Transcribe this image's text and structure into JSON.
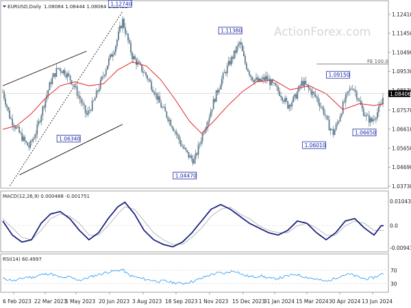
{
  "header": {
    "symbol_label": "EURUSD,Daily",
    "ohlc": "1.08084 1.08444 1.08084 1.08406"
  },
  "watermark": "ActionForex.com",
  "colors": {
    "candle": "#5e7a8c",
    "ma": "#e02424",
    "macd_line": "#1a237e",
    "signal_line": "#b0b0b0",
    "rsi_line": "#2196f3",
    "trendline": "#000000",
    "callout_border": "#1a2aa0",
    "current_price_box": "#000000"
  },
  "chart_data": [
    {
      "type": "candlestick",
      "title": "EURUSD,Daily",
      "x_ticks": [
        "6 Feb 2023",
        "22 Mar 2023",
        "5 May 2023",
        "20 Jun 2023",
        "3 Aug 2023",
        "18 Sep 2023",
        "1 Nov 2023",
        "15 Dec 2023",
        "31 Jan 2024",
        "15 Mar 2024",
        "30 Apr 2024",
        "13 Jun 2024"
      ],
      "y_ticks": [
        "1.12410",
        "1.11450",
        "1.10490",
        "1.09530",
        "1.08570",
        "1.07570",
        "1.06610",
        "1.05650",
        "1.04690",
        "1.03730"
      ],
      "ylim": [
        1.0373,
        1.1265
      ],
      "current_price": "1.08406",
      "callouts": [
        {
          "label": "1.12740",
          "value": 1.1274,
          "position": "above"
        },
        {
          "label": "1.11380",
          "value": 1.1138,
          "position": "above"
        },
        {
          "label": "1.09150",
          "value": 1.0915,
          "position": "above"
        },
        {
          "label": "1.06340",
          "value": 1.0634,
          "position": "below"
        },
        {
          "label": "1.04470",
          "value": 1.0447,
          "position": "below"
        },
        {
          "label": "1.06010",
          "value": 1.0601,
          "position": "below"
        },
        {
          "label": "1.06650",
          "value": 1.0665,
          "position": "below"
        }
      ],
      "fibo_label": "FE 100.0",
      "fibo_value": 1.099,
      "close_path": [
        [
          0,
          1.085
        ],
        [
          6,
          1.072
        ],
        [
          12,
          1.066
        ],
        [
          18,
          1.06
        ],
        [
          22,
          1.057
        ],
        [
          28,
          1.065
        ],
        [
          34,
          1.078
        ],
        [
          40,
          1.09
        ],
        [
          46,
          1.097
        ],
        [
          52,
          1.095
        ],
        [
          58,
          1.09
        ],
        [
          64,
          1.082
        ],
        [
          70,
          1.073
        ],
        [
          76,
          1.08
        ],
        [
          82,
          1.09
        ],
        [
          88,
          1.1
        ],
        [
          94,
          1.108
        ],
        [
          98,
          1.117
        ],
        [
          100,
          1.121
        ],
        [
          104,
          1.112
        ],
        [
          108,
          1.103
        ],
        [
          114,
          1.098
        ],
        [
          120,
          1.093
        ],
        [
          126,
          1.086
        ],
        [
          132,
          1.078
        ],
        [
          138,
          1.072
        ],
        [
          144,
          1.065
        ],
        [
          150,
          1.057
        ],
        [
          156,
          1.052
        ],
        [
          160,
          1.05
        ],
        [
          164,
          1.058
        ],
        [
          168,
          1.066
        ],
        [
          172,
          1.072
        ],
        [
          176,
          1.08
        ],
        [
          182,
          1.09
        ],
        [
          188,
          1.098
        ],
        [
          194,
          1.105
        ],
        [
          198,
          1.11
        ],
        [
          202,
          1.1
        ],
        [
          208,
          1.092
        ],
        [
          214,
          1.09
        ],
        [
          220,
          1.092
        ],
        [
          226,
          1.088
        ],
        [
          232,
          1.084
        ],
        [
          238,
          1.078
        ],
        [
          244,
          1.082
        ],
        [
          250,
          1.09
        ],
        [
          256,
          1.086
        ],
        [
          262,
          1.082
        ],
        [
          268,
          1.075
        ],
        [
          272,
          1.068
        ],
        [
          276,
          1.064
        ],
        [
          280,
          1.07
        ],
        [
          284,
          1.078
        ],
        [
          288,
          1.084
        ],
        [
          292,
          1.088
        ],
        [
          296,
          1.083
        ],
        [
          300,
          1.076
        ],
        [
          304,
          1.072
        ],
        [
          308,
          1.07
        ],
        [
          312,
          1.074
        ],
        [
          316,
          1.078
        ],
        [
          318,
          1.084
        ]
      ],
      "ma_path": [
        [
          0,
          1.066
        ],
        [
          12,
          1.068
        ],
        [
          24,
          1.074
        ],
        [
          36,
          1.082
        ],
        [
          48,
          1.088
        ],
        [
          60,
          1.09
        ],
        [
          72,
          1.088
        ],
        [
          84,
          1.089
        ],
        [
          96,
          1.096
        ],
        [
          108,
          1.1
        ],
        [
          120,
          1.098
        ],
        [
          132,
          1.091
        ],
        [
          144,
          1.081
        ],
        [
          156,
          1.07
        ],
        [
          166,
          1.064
        ],
        [
          176,
          1.07
        ],
        [
          188,
          1.078
        ],
        [
          200,
          1.085
        ],
        [
          212,
          1.09
        ],
        [
          226,
          1.091
        ],
        [
          240,
          1.086
        ],
        [
          256,
          1.088
        ],
        [
          270,
          1.084
        ],
        [
          284,
          1.076
        ],
        [
          298,
          1.079
        ],
        [
          310,
          1.078
        ],
        [
          318,
          1.079
        ]
      ]
    },
    {
      "type": "line",
      "title": "MACD(12,26,9) 0.000488 -0.001751",
      "y_ticks": [
        "0.010434",
        "0.0",
        "-0.009436"
      ],
      "ylim": [
        -0.01,
        0.011
      ],
      "macd": [
        [
          0,
          0.002
        ],
        [
          8,
          -0.004
        ],
        [
          16,
          -0.007
        ],
        [
          24,
          -0.006
        ],
        [
          32,
          0.001
        ],
        [
          40,
          0.005
        ],
        [
          48,
          0.006
        ],
        [
          56,
          0.003
        ],
        [
          64,
          -0.002
        ],
        [
          72,
          -0.006
        ],
        [
          80,
          -0.003
        ],
        [
          88,
          0.003
        ],
        [
          96,
          0.008
        ],
        [
          102,
          0.01
        ],
        [
          110,
          0.005
        ],
        [
          118,
          -0.002
        ],
        [
          126,
          -0.006
        ],
        [
          134,
          -0.008
        ],
        [
          142,
          -0.009
        ],
        [
          150,
          -0.007
        ],
        [
          158,
          -0.003
        ],
        [
          166,
          0.002
        ],
        [
          174,
          0.007
        ],
        [
          182,
          0.009
        ],
        [
          190,
          0.007
        ],
        [
          198,
          0.004
        ],
        [
          206,
          0.001
        ],
        [
          214,
          -0.001
        ],
        [
          222,
          -0.003
        ],
        [
          230,
          -0.004
        ],
        [
          238,
          -0.002
        ],
        [
          246,
          0.002
        ],
        [
          254,
          0.001
        ],
        [
          262,
          -0.003
        ],
        [
          270,
          -0.006
        ],
        [
          278,
          -0.003
        ],
        [
          286,
          0.002
        ],
        [
          294,
          0.003
        ],
        [
          302,
          -0.001
        ],
        [
          310,
          -0.004
        ],
        [
          316,
          0.0
        ]
      ],
      "signal": [
        [
          0,
          0.003
        ],
        [
          8,
          -0.001
        ],
        [
          16,
          -0.005
        ],
        [
          24,
          -0.006
        ],
        [
          32,
          -0.002
        ],
        [
          40,
          0.003
        ],
        [
          48,
          0.005
        ],
        [
          56,
          0.004
        ],
        [
          64,
          0.001
        ],
        [
          72,
          -0.004
        ],
        [
          80,
          -0.004
        ],
        [
          88,
          0.0
        ],
        [
          96,
          0.005
        ],
        [
          102,
          0.008
        ],
        [
          110,
          0.007
        ],
        [
          118,
          0.002
        ],
        [
          126,
          -0.003
        ],
        [
          134,
          -0.006
        ],
        [
          142,
          -0.008
        ],
        [
          150,
          -0.008
        ],
        [
          158,
          -0.005
        ],
        [
          166,
          -0.001
        ],
        [
          174,
          0.004
        ],
        [
          182,
          0.007
        ],
        [
          190,
          0.008
        ],
        [
          198,
          0.005
        ],
        [
          206,
          0.003
        ],
        [
          214,
          0.0
        ],
        [
          222,
          -0.002
        ],
        [
          230,
          -0.003
        ],
        [
          238,
          -0.003
        ],
        [
          246,
          0.0
        ],
        [
          254,
          0.001
        ],
        [
          262,
          -0.001
        ],
        [
          270,
          -0.004
        ],
        [
          278,
          -0.004
        ],
        [
          286,
          0.0
        ],
        [
          294,
          0.002
        ],
        [
          302,
          0.001
        ],
        [
          310,
          -0.002
        ],
        [
          316,
          -0.002
        ]
      ]
    },
    {
      "type": "line",
      "title": "RSI(14) 60.4997",
      "y_ticks": [
        "70",
        "30"
      ],
      "ylim": [
        10,
        90
      ],
      "rsi": [
        [
          0,
          45
        ],
        [
          5,
          42
        ],
        [
          10,
          38
        ],
        [
          15,
          44
        ],
        [
          20,
          50
        ],
        [
          25,
          48
        ],
        [
          30,
          55
        ],
        [
          35,
          58
        ],
        [
          40,
          60
        ],
        [
          45,
          52
        ],
        [
          50,
          46
        ],
        [
          55,
          50
        ],
        [
          60,
          44
        ],
        [
          65,
          40
        ],
        [
          70,
          46
        ],
        [
          75,
          52
        ],
        [
          80,
          57
        ],
        [
          85,
          62
        ],
        [
          90,
          66
        ],
        [
          95,
          68
        ],
        [
          100,
          72
        ],
        [
          105,
          56
        ],
        [
          110,
          50
        ],
        [
          115,
          46
        ],
        [
          120,
          42
        ],
        [
          125,
          40
        ],
        [
          130,
          36
        ],
        [
          135,
          38
        ],
        [
          140,
          34
        ],
        [
          145,
          32
        ],
        [
          150,
          30
        ],
        [
          155,
          34
        ],
        [
          160,
          38
        ],
        [
          165,
          44
        ],
        [
          170,
          52
        ],
        [
          175,
          58
        ],
        [
          180,
          62
        ],
        [
          185,
          60
        ],
        [
          190,
          66
        ],
        [
          195,
          68
        ],
        [
          200,
          56
        ],
        [
          205,
          52
        ],
        [
          210,
          50
        ],
        [
          215,
          54
        ],
        [
          220,
          48
        ],
        [
          225,
          44
        ],
        [
          230,
          46
        ],
        [
          235,
          50
        ],
        [
          240,
          54
        ],
        [
          245,
          58
        ],
        [
          250,
          52
        ],
        [
          255,
          48
        ],
        [
          260,
          44
        ],
        [
          265,
          40
        ],
        [
          270,
          36
        ],
        [
          275,
          42
        ],
        [
          280,
          50
        ],
        [
          285,
          56
        ],
        [
          290,
          58
        ],
        [
          295,
          52
        ],
        [
          300,
          46
        ],
        [
          305,
          44
        ],
        [
          310,
          48
        ],
        [
          315,
          56
        ],
        [
          318,
          60
        ]
      ]
    }
  ]
}
